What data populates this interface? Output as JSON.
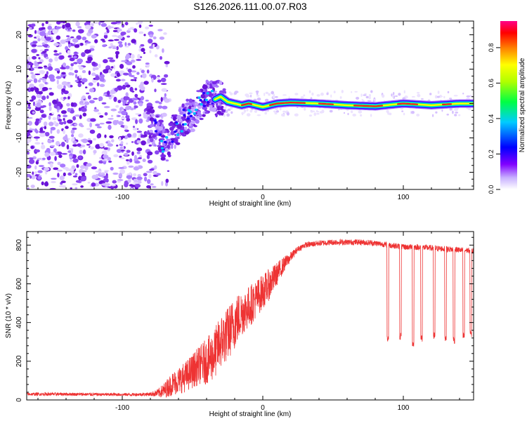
{
  "figure_title": "S126.2026.111.00.07.R03",
  "chart_data": [
    {
      "type": "heatmap",
      "title": "S126.2026.111.00.07.R03",
      "xlabel": "Height of straight line (km)",
      "ylabel": "Frequency (Hz)",
      "xlim": [
        -168,
        150
      ],
      "ylim": [
        -25,
        24
      ],
      "x_ticks": [
        -100,
        0,
        100
      ],
      "x_tick_labels": [
        "-100",
        "0",
        "100"
      ],
      "y_ticks": [
        -20,
        -10,
        0,
        10,
        20
      ],
      "y_tick_labels": [
        "-20",
        "-10",
        "0",
        "10",
        "20"
      ],
      "description_series": {
        "noise_region_x": [
          -168,
          -72
        ],
        "transition_x": [
          -80,
          -30
        ],
        "carrier_x_start": -30,
        "carrier_frequency_hz": 0
      },
      "carrier_track": {
        "x": [
          -80,
          -75,
          -70,
          -65,
          -60,
          -55,
          -50,
          -45,
          -40,
          -35,
          -30,
          -25,
          -20,
          -15,
          -10,
          -5,
          0,
          10,
          20,
          40,
          60,
          80,
          100,
          120,
          140,
          150
        ],
        "freq": [
          -6,
          -8,
          -12,
          -9,
          -7,
          -4,
          -3,
          -1,
          2,
          1,
          2,
          0.5,
          0,
          -0.5,
          0,
          -0.5,
          -1,
          0,
          0.3,
          0,
          -0.5,
          -0.8,
          0,
          -0.5,
          0,
          0
        ]
      },
      "colorbar": {
        "label": "Normalized spectral amplitude",
        "range": [
          0,
          0.95
        ],
        "ticks": [
          0.0,
          0.2,
          0.4,
          0.6,
          0.8
        ],
        "tick_labels": [
          "0.0",
          "0.2",
          "0.4",
          "0.6",
          "0.8"
        ]
      }
    },
    {
      "type": "line",
      "xlabel": "Height of straight line (km)",
      "ylabel": "SNR (10 * v/v)",
      "xlim": [
        -168,
        150
      ],
      "ylim": [
        0,
        870
      ],
      "x_ticks": [
        -100,
        0,
        100
      ],
      "x_tick_labels": [
        "-100",
        "0",
        "100"
      ],
      "y_ticks": [
        0,
        200,
        400,
        600,
        800
      ],
      "y_tick_labels": [
        "0",
        "200",
        "400",
        "600",
        "800"
      ],
      "color": "#ee3333",
      "series": [
        {
          "name": "SNR",
          "x": [
            -168,
            -140,
            -110,
            -90,
            -80,
            -75,
            -70,
            -65,
            -60,
            -55,
            -50,
            -45,
            -40,
            -35,
            -30,
            -25,
            -20,
            -15,
            -10,
            -5,
            0,
            5,
            10,
            15,
            20,
            25,
            30,
            40,
            50,
            60,
            70,
            80,
            90,
            100,
            110,
            120,
            130,
            140,
            150
          ],
          "y": [
            30,
            30,
            28,
            28,
            30,
            35,
            50,
            80,
            100,
            120,
            150,
            180,
            200,
            230,
            300,
            340,
            400,
            450,
            480,
            520,
            560,
            600,
            650,
            700,
            740,
            780,
            800,
            810,
            815,
            815,
            815,
            810,
            800,
            790,
            790,
            785,
            780,
            775,
            770
          ],
          "noise_amplitude": [
            8,
            8,
            8,
            8,
            10,
            20,
            40,
            60,
            70,
            80,
            90,
            100,
            120,
            130,
            140,
            140,
            140,
            120,
            110,
            100,
            90,
            80,
            60,
            40,
            25,
            15,
            15,
            15,
            15,
            15,
            15,
            15,
            15,
            15,
            15,
            15,
            15,
            15,
            15
          ]
        }
      ],
      "dropouts": [
        {
          "x": 89,
          "min": 300
        },
        {
          "x": 98,
          "min": 310
        },
        {
          "x": 107,
          "min": 270
        },
        {
          "x": 113,
          "min": 300
        },
        {
          "x": 122,
          "min": 310
        },
        {
          "x": 130,
          "min": 300
        },
        {
          "x": 136,
          "min": 290
        },
        {
          "x": 143,
          "min": 310
        },
        {
          "x": 148,
          "min": 320
        }
      ]
    }
  ]
}
